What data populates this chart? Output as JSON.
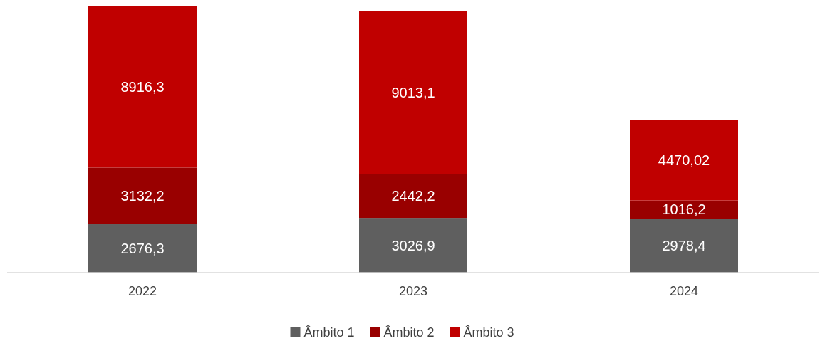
{
  "chart_data": {
    "type": "bar",
    "stacked": true,
    "categories": [
      "2022",
      "2023",
      "2024"
    ],
    "legend": "bottom",
    "series": [
      {
        "name": "Âmbito 1",
        "color": "#5f5f5f",
        "values": [
          2676.3,
          3026.9,
          2978.4
        ],
        "value_labels": [
          "2676,3",
          "3026,9",
          "2978,4"
        ]
      },
      {
        "name": "Âmbito 2",
        "color": "#990000",
        "values": [
          3132.2,
          2442.2,
          1016.2
        ],
        "value_labels": [
          "3132,2",
          "2442,2",
          "1016,2"
        ]
      },
      {
        "name": "Âmbito 3",
        "color": "#c00000",
        "values": [
          8916.3,
          9013.1,
          4470.02
        ],
        "value_labels": [
          "8916,3",
          "9013,1",
          "4470,02"
        ]
      }
    ]
  }
}
